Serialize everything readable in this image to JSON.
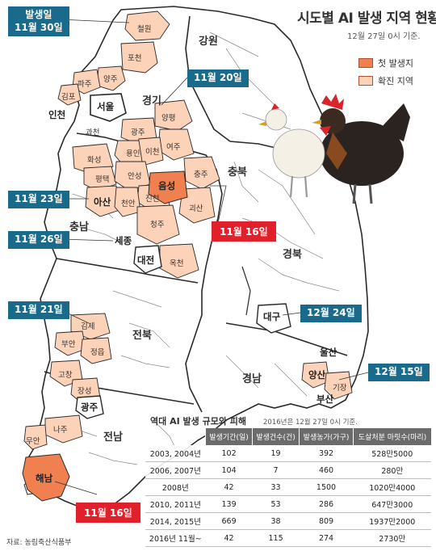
{
  "header": {
    "title": "시도별 AI 발생 지역 현황",
    "subtitle": "12월 27일 0시 기준."
  },
  "legend": {
    "items": [
      {
        "label": "첫 발생지",
        "color": "#f08050"
      },
      {
        "label": "확진 지역",
        "color": "#fcd3b8"
      }
    ]
  },
  "colors": {
    "map_base": "#ffffff",
    "map_border": "#2a2a2a",
    "first_outbreak": "#f08050",
    "confirmed_area": "#fcd3b8",
    "date_box": "#1a6a8c",
    "date_box_highlight": "#e0202a"
  },
  "date_labels": {
    "gyeonggi_first_line": "발생일",
    "gyeonggi_second_line": "11월 30일",
    "gangwon_west": "11월 20일",
    "chungnam": "11월 23일",
    "sejong": "11월 26일",
    "chungbuk": "11월 16일",
    "jeonbuk": "11월 21일",
    "daegu": "12월 24일",
    "ulsan": "12월 15일",
    "jeonnam": "11월 16일"
  },
  "provinces": {
    "gangwon": "강원",
    "gyeonggi": "경기",
    "chungbuk": "충북",
    "chungnam": "충남",
    "gyeongbuk": "경북",
    "jeonbuk": "전북",
    "gyeongnam": "경남",
    "jeonnam": "전남"
  },
  "metros": {
    "seoul": "서울",
    "incheon": "인천",
    "sejong": "세종",
    "daejeon": "대전",
    "daegu": "대구",
    "ulsan": "울산",
    "busan": "부산",
    "gwangju": "광주"
  },
  "cities": {
    "cheorwon": "철원",
    "pocheon": "포천",
    "yangju": "양주",
    "paju": "파주",
    "gimpo": "김포",
    "gwacheon": "과천",
    "yangpyeong": "양평",
    "gwangju_gg": "광주",
    "yongin": "용인",
    "icheon": "이천",
    "yeoju": "여주",
    "hwaseong": "화성",
    "pyeongtaek": "평택",
    "anseong": "안성",
    "eumseong": "음성",
    "chungju": "충주",
    "jincheon": "진천",
    "goesan": "괴산",
    "asan": "아산",
    "cheonan": "천안",
    "cheongju": "청주",
    "okcheon": "옥천",
    "gimje": "김제",
    "buan": "부안",
    "jeongeup": "정읍",
    "gochang": "고창",
    "jangseong": "장성",
    "naju": "나주",
    "muan": "무안",
    "haenam": "해남",
    "yangsan": "양산",
    "gijang": "기장"
  },
  "table": {
    "title": "역대 AI 발생 규모와 피해",
    "note": "2016년은 12월 27일 0시 기준.",
    "columns": [
      "발생기간(일)",
      "발생건수(건)",
      "발생농가(가구)",
      "도살처분 마릿수(마리)"
    ],
    "rows": [
      {
        "period": "2003, 2004년",
        "days": "102",
        "cases": "19",
        "farms": "392",
        "culled": "528만5000"
      },
      {
        "period": "2006, 2007년",
        "days": "104",
        "cases": "7",
        "farms": "460",
        "culled": "280만"
      },
      {
        "period": "2008년",
        "days": "42",
        "cases": "33",
        "farms": "1500",
        "culled": "1020만4000"
      },
      {
        "period": "2010, 2011년",
        "days": "139",
        "cases": "53",
        "farms": "286",
        "culled": "647만3000"
      },
      {
        "period": "2014, 2015년",
        "days": "669",
        "cases": "38",
        "farms": "809",
        "culled": "1937만2000"
      },
      {
        "period": "2016년 11월~",
        "days": "42",
        "cases": "115",
        "farms": "274",
        "culled": "2730만"
      }
    ]
  },
  "source": "자료: 농림축산식품부"
}
